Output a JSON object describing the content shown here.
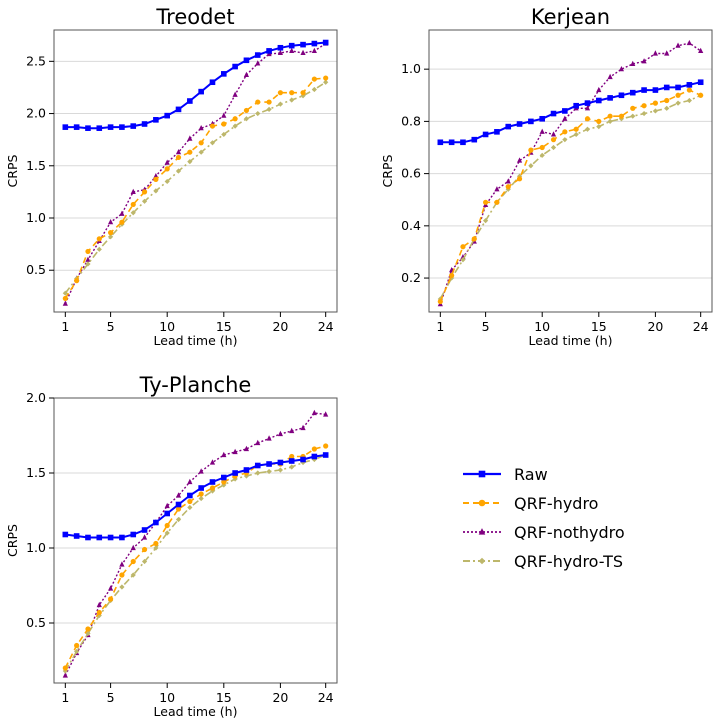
{
  "chart_data": [
    {
      "type": "line",
      "title": "Treodet",
      "xlabel": "Lead time (h)",
      "ylabel": "CRPS",
      "xlim": [
        0,
        25
      ],
      "ylim": [
        0.1,
        2.8
      ],
      "xticks": [
        1,
        5,
        10,
        15,
        20,
        24
      ],
      "yticks": [
        0.5,
        1.0,
        1.5,
        2.0,
        2.5
      ],
      "ytick_labels": [
        "0.5",
        "1.0",
        "1.5",
        "2.0",
        "2.5"
      ],
      "grid": "horizontal",
      "x": [
        1,
        2,
        3,
        4,
        5,
        6,
        7,
        8,
        9,
        10,
        11,
        12,
        13,
        14,
        15,
        16,
        17,
        18,
        19,
        20,
        21,
        22,
        23,
        24
      ],
      "series": [
        {
          "name": "Raw",
          "values": [
            1.87,
            1.87,
            1.86,
            1.86,
            1.87,
            1.87,
            1.88,
            1.9,
            1.94,
            1.98,
            2.04,
            2.12,
            2.21,
            2.3,
            2.38,
            2.45,
            2.51,
            2.56,
            2.6,
            2.63,
            2.65,
            2.66,
            2.67,
            2.68
          ]
        },
        {
          "name": "QRF-hydro",
          "values": [
            0.23,
            0.4,
            0.68,
            0.8,
            0.86,
            0.96,
            1.13,
            1.25,
            1.37,
            1.47,
            1.58,
            1.63,
            1.72,
            1.88,
            1.9,
            1.95,
            2.03,
            2.11,
            2.11,
            2.2,
            2.2,
            2.2,
            2.33,
            2.34
          ]
        },
        {
          "name": "QRF-nothydro",
          "values": [
            0.18,
            0.42,
            0.6,
            0.78,
            0.96,
            1.04,
            1.25,
            1.27,
            1.4,
            1.53,
            1.63,
            1.76,
            1.86,
            1.9,
            1.98,
            2.18,
            2.37,
            2.48,
            2.57,
            2.58,
            2.6,
            2.58,
            2.6,
            2.67
          ]
        },
        {
          "name": "QRF-hydro-TS",
          "values": [
            0.28,
            0.42,
            0.56,
            0.7,
            0.82,
            0.94,
            1.05,
            1.16,
            1.26,
            1.35,
            1.45,
            1.54,
            1.63,
            1.72,
            1.8,
            1.88,
            1.95,
            2.0,
            2.04,
            2.09,
            2.13,
            2.17,
            2.23,
            2.3
          ]
        }
      ]
    },
    {
      "type": "line",
      "title": "Kerjean",
      "xlabel": "Lead time (h)",
      "ylabel": "CRPS",
      "xlim": [
        0,
        25
      ],
      "ylim": [
        0.07,
        1.15
      ],
      "xticks": [
        1,
        5,
        10,
        15,
        20,
        24
      ],
      "yticks": [
        0.2,
        0.4,
        0.6,
        0.8,
        1.0
      ],
      "ytick_labels": [
        "0.2",
        "0.4",
        "0.6",
        "0.8",
        "1.0"
      ],
      "grid": "horizontal",
      "x": [
        1,
        2,
        3,
        4,
        5,
        6,
        7,
        8,
        9,
        10,
        11,
        12,
        13,
        14,
        15,
        16,
        17,
        18,
        19,
        20,
        21,
        22,
        23,
        24
      ],
      "series": [
        {
          "name": "Raw",
          "values": [
            0.72,
            0.72,
            0.72,
            0.73,
            0.75,
            0.76,
            0.78,
            0.79,
            0.8,
            0.81,
            0.83,
            0.84,
            0.86,
            0.87,
            0.88,
            0.89,
            0.9,
            0.91,
            0.92,
            0.92,
            0.93,
            0.93,
            0.94,
            0.95
          ]
        },
        {
          "name": "QRF-hydro",
          "values": [
            0.11,
            0.21,
            0.32,
            0.35,
            0.49,
            0.49,
            0.55,
            0.58,
            0.69,
            0.7,
            0.73,
            0.76,
            0.77,
            0.81,
            0.8,
            0.82,
            0.82,
            0.85,
            0.86,
            0.87,
            0.88,
            0.9,
            0.92,
            0.9
          ]
        },
        {
          "name": "QRF-nothydro",
          "values": [
            0.1,
            0.23,
            0.28,
            0.34,
            0.48,
            0.54,
            0.57,
            0.65,
            0.68,
            0.76,
            0.75,
            0.81,
            0.85,
            0.85,
            0.92,
            0.97,
            1.0,
            1.02,
            1.03,
            1.06,
            1.06,
            1.09,
            1.1,
            1.07
          ]
        },
        {
          "name": "QRF-hydro-TS",
          "values": [
            0.12,
            0.2,
            0.27,
            0.35,
            0.42,
            0.49,
            0.54,
            0.59,
            0.63,
            0.67,
            0.7,
            0.73,
            0.75,
            0.77,
            0.78,
            0.8,
            0.81,
            0.82,
            0.83,
            0.84,
            0.85,
            0.87,
            0.88,
            0.9
          ]
        }
      ]
    },
    {
      "type": "line",
      "title": "Ty-Planche",
      "xlabel": "Lead time (h)",
      "ylabel": "CRPS",
      "xlim": [
        0,
        25
      ],
      "ylim": [
        0.1,
        2.0
      ],
      "xticks": [
        1,
        5,
        10,
        15,
        20,
        24
      ],
      "yticks": [
        0.5,
        1.0,
        1.5,
        2.0
      ],
      "ytick_labels": [
        "0.5",
        "1.0",
        "1.5",
        "2.0"
      ],
      "grid": "horizontal",
      "x": [
        1,
        2,
        3,
        4,
        5,
        6,
        7,
        8,
        9,
        10,
        11,
        12,
        13,
        14,
        15,
        16,
        17,
        18,
        19,
        20,
        21,
        22,
        23,
        24
      ],
      "series": [
        {
          "name": "Raw",
          "values": [
            1.09,
            1.08,
            1.07,
            1.07,
            1.07,
            1.07,
            1.09,
            1.12,
            1.17,
            1.23,
            1.29,
            1.35,
            1.4,
            1.44,
            1.47,
            1.5,
            1.52,
            1.55,
            1.56,
            1.57,
            1.58,
            1.59,
            1.61,
            1.62
          ]
        },
        {
          "name": "QRF-hydro",
          "values": [
            0.2,
            0.35,
            0.46,
            0.57,
            0.66,
            0.82,
            0.91,
            0.99,
            1.03,
            1.15,
            1.26,
            1.31,
            1.36,
            1.4,
            1.44,
            1.48,
            1.5,
            1.55,
            1.56,
            1.56,
            1.61,
            1.61,
            1.66,
            1.68
          ]
        },
        {
          "name": "QRF-nothydro",
          "values": [
            0.15,
            0.3,
            0.42,
            0.62,
            0.73,
            0.89,
            1.0,
            1.07,
            1.17,
            1.28,
            1.35,
            1.44,
            1.51,
            1.57,
            1.62,
            1.64,
            1.66,
            1.7,
            1.73,
            1.76,
            1.78,
            1.8,
            1.9,
            1.89
          ]
        },
        {
          "name": "QRF-hydro-TS",
          "values": [
            0.18,
            0.31,
            0.43,
            0.55,
            0.65,
            0.74,
            0.82,
            0.91,
            1.0,
            1.1,
            1.19,
            1.27,
            1.33,
            1.38,
            1.42,
            1.46,
            1.48,
            1.5,
            1.51,
            1.52,
            1.54,
            1.57,
            1.59,
            1.62
          ]
        }
      ]
    }
  ],
  "legend": {
    "placement": "lower-right",
    "items": [
      {
        "name": "Raw",
        "color": "#0000ff",
        "marker": "square",
        "dash": "solid"
      },
      {
        "name": "QRF-hydro",
        "color": "#ffa500",
        "marker": "circle",
        "dash": "dashed"
      },
      {
        "name": "QRF-nothydro",
        "color": "#800080",
        "marker": "triangle",
        "dash": "dotted"
      },
      {
        "name": "QRF-hydro-TS",
        "color": "#bdb76b",
        "marker": "diamond",
        "dash": "dashdot"
      }
    ]
  }
}
